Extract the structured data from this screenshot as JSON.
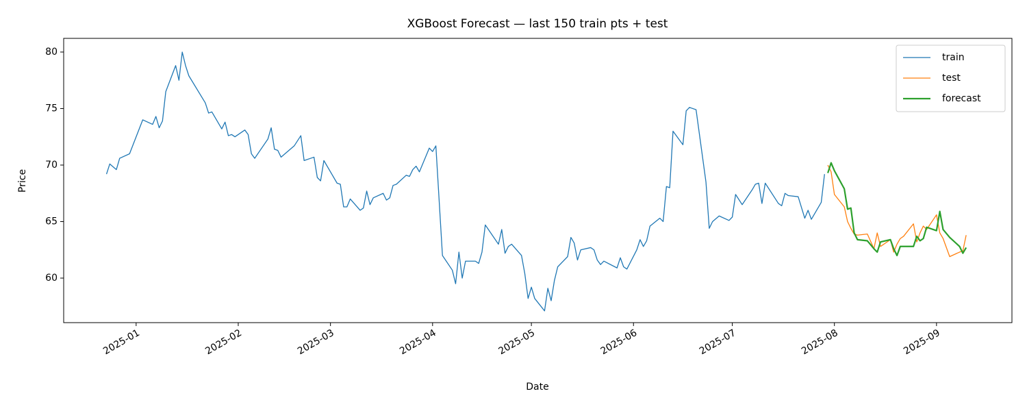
{
  "chart_data": {
    "type": "line",
    "title": "XGBoost Forecast — last 150 train pts + test",
    "x_label": "Date",
    "y_label": "Price",
    "xlim": [
      -22,
      265.9
    ],
    "ylim": [
      56.06,
      81.21
    ],
    "xticks": [
      {
        "value": 0,
        "label": "2025-01"
      },
      {
        "value": 31,
        "label": "2025-02"
      },
      {
        "value": 59,
        "label": "2025-03"
      },
      {
        "value": 90,
        "label": "2025-04"
      },
      {
        "value": 120,
        "label": "2025-05"
      },
      {
        "value": 151,
        "label": "2025-06"
      },
      {
        "value": 181,
        "label": "2025-07"
      },
      {
        "value": 212,
        "label": "2025-08"
      },
      {
        "value": 243,
        "label": "2025-09"
      }
    ],
    "yticks": [
      60,
      65,
      70,
      75,
      80
    ],
    "grid": false,
    "legend": "upper right",
    "series": [
      {
        "name": "train",
        "color": "#1f77b4",
        "linewidth": 1.3,
        "x": [
          -9,
          -8,
          -6,
          -5,
          -2,
          2,
          5,
          6,
          7,
          8,
          9,
          12,
          13,
          14,
          15,
          16,
          21,
          22,
          23,
          26,
          27,
          28,
          29,
          30,
          33,
          34,
          35,
          36,
          40,
          41,
          42,
          43,
          44,
          48,
          50,
          51,
          54,
          55,
          56,
          57,
          61,
          62,
          63,
          64,
          65,
          68,
          69,
          70,
          71,
          72,
          75,
          76,
          77,
          78,
          79,
          82,
          83,
          84,
          85,
          86,
          89,
          90,
          91,
          93,
          96,
          97,
          98,
          99,
          100,
          103,
          104,
          105,
          106,
          110,
          111,
          112,
          113,
          114,
          117,
          118,
          119,
          120,
          121,
          124,
          125,
          126,
          127,
          128,
          131,
          132,
          133,
          134,
          135,
          138,
          139,
          140,
          141,
          142,
          146,
          147,
          148,
          149,
          152,
          153,
          154,
          155,
          156,
          159,
          160,
          161,
          162,
          163,
          166,
          167,
          168,
          170,
          173,
          174,
          175,
          177,
          180,
          181,
          182,
          184,
          187,
          188,
          189,
          190,
          191,
          195,
          196,
          197,
          198,
          201,
          203,
          204,
          205,
          208,
          209
        ],
        "values": [
          69.2,
          70.1,
          69.6,
          70.6,
          71.0,
          74.0,
          73.6,
          74.3,
          73.3,
          73.9,
          76.5,
          78.8,
          77.5,
          80.0,
          78.8,
          77.9,
          75.5,
          74.6,
          74.7,
          73.2,
          73.8,
          72.6,
          72.7,
          72.5,
          73.1,
          72.7,
          71.0,
          70.6,
          72.3,
          73.3,
          71.4,
          71.3,
          70.7,
          71.7,
          72.6,
          70.4,
          70.7,
          68.9,
          68.6,
          70.4,
          68.4,
          68.3,
          66.3,
          66.3,
          67.0,
          66.0,
          66.2,
          67.7,
          66.5,
          67.1,
          67.5,
          66.9,
          67.1,
          68.2,
          68.3,
          69.1,
          69.0,
          69.6,
          69.9,
          69.4,
          71.5,
          71.2,
          71.7,
          62.0,
          60.7,
          59.5,
          62.3,
          60.0,
          61.5,
          61.5,
          61.3,
          62.3,
          64.7,
          63.0,
          64.3,
          62.2,
          62.8,
          63.0,
          62.0,
          60.4,
          58.2,
          59.2,
          58.2,
          57.1,
          59.1,
          58.0,
          59.8,
          61.0,
          61.9,
          63.6,
          63.1,
          61.6,
          62.5,
          62.7,
          62.5,
          61.6,
          61.2,
          61.5,
          60.9,
          61.8,
          61.0,
          60.8,
          62.5,
          63.4,
          62.8,
          63.3,
          64.6,
          65.3,
          65.0,
          68.1,
          68.0,
          73.0,
          71.8,
          74.8,
          75.1,
          74.9,
          68.5,
          64.4,
          65.0,
          65.5,
          65.1,
          65.4,
          67.4,
          66.5,
          67.8,
          68.3,
          68.4,
          66.6,
          68.4,
          66.6,
          66.4,
          67.5,
          67.3,
          67.2,
          65.3,
          66.0,
          65.2,
          66.7,
          69.2
        ]
      },
      {
        "name": "test",
        "color": "#ff7f0e",
        "linewidth": 1.3,
        "x": [
          210,
          211,
          212,
          215,
          216,
          217,
          218,
          219,
          222,
          224,
          225,
          226,
          229,
          230,
          231,
          232,
          233,
          236,
          237,
          238,
          239,
          240,
          243,
          244,
          245,
          247,
          250,
          251,
          252
        ],
        "values": [
          70.0,
          69.4,
          67.4,
          66.3,
          65.0,
          64.4,
          63.9,
          63.8,
          63.9,
          62.6,
          64.0,
          62.8,
          63.4,
          62.3,
          63.0,
          63.5,
          63.7,
          64.8,
          63.2,
          64.0,
          64.6,
          64.3,
          65.6,
          64.0,
          63.5,
          61.9,
          62.3,
          62.4,
          63.8
        ]
      },
      {
        "name": "forecast",
        "color": "#2ca02c",
        "linewidth": 2.2,
        "x": [
          210,
          211,
          212,
          215,
          216,
          217,
          218,
          219,
          222,
          224,
          225,
          226,
          229,
          230,
          231,
          232,
          233,
          236,
          237,
          238,
          239,
          240,
          243,
          244,
          245,
          247,
          250,
          251,
          252
        ],
        "values": [
          69.3,
          70.2,
          69.5,
          67.9,
          66.1,
          66.2,
          64.0,
          63.4,
          63.3,
          62.6,
          62.3,
          63.2,
          63.4,
          62.6,
          62.0,
          62.8,
          62.8,
          62.8,
          63.7,
          63.3,
          63.5,
          64.5,
          64.2,
          65.9,
          64.3,
          63.6,
          62.8,
          62.2,
          62.7
        ]
      }
    ]
  }
}
